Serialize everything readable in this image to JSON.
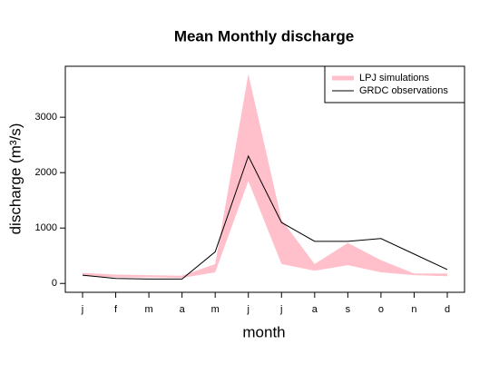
{
  "chart_data": {
    "type": "line",
    "title": "Mean Monthly discharge",
    "x_label": "month",
    "y_label": "discharge (m³/s)",
    "categories": [
      "j",
      "f",
      "m",
      "a",
      "m",
      "j",
      "j",
      "a",
      "s",
      "o",
      "n",
      "d"
    ],
    "ylim": [
      -160,
      3920
    ],
    "yticks": [
      0,
      1000,
      2000,
      3000
    ],
    "legend": "top-right",
    "series": [
      {
        "name": "LPJ simulations",
        "color": "#ffc0cb",
        "upper": [
          190,
          160,
          150,
          140,
          350,
          3780,
          1150,
          350,
          730,
          420,
          180,
          180
        ],
        "lower": [
          130,
          110,
          110,
          100,
          200,
          1850,
          350,
          230,
          330,
          200,
          150,
          130
        ]
      },
      {
        "name": "GRDC observations",
        "color": "#000000",
        "values": [
          150,
          90,
          80,
          80,
          570,
          2300,
          1100,
          760,
          760,
          810,
          530,
          250
        ]
      }
    ]
  }
}
